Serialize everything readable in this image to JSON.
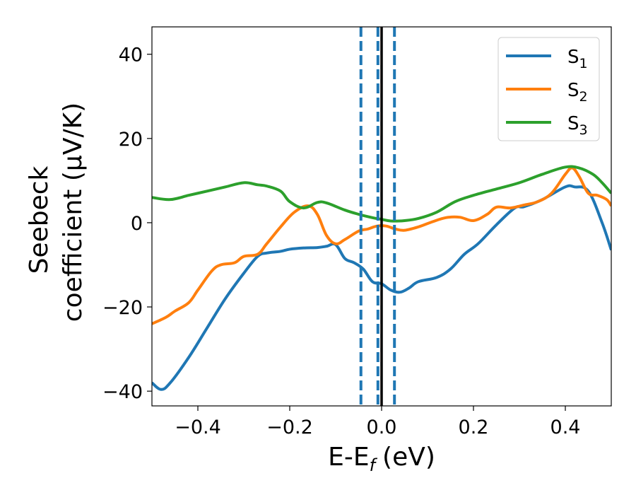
{
  "chart_data": {
    "type": "line",
    "xlabel": "E-E",
    "xlabel_sub": "f",
    "xlabel_unit": "(eV)",
    "ylabel_line1": "Seebeck",
    "ylabel_line2": "coefficient  (μV/K)",
    "xlim": [
      -0.5,
      0.5
    ],
    "ylim": [
      -43.5,
      46.5
    ],
    "x_ticks": [
      -0.4,
      -0.2,
      0.0,
      0.2,
      0.4
    ],
    "x_tick_labels": [
      "−0.4",
      "−0.2",
      "0.0",
      "0.2",
      "0.4"
    ],
    "y_ticks": [
      -40,
      -20,
      0,
      20,
      40
    ],
    "y_tick_labels": [
      "−40",
      "−20",
      "0",
      "20",
      "40"
    ],
    "grid": false,
    "legend_position": "top-right",
    "vlines": [
      {
        "x": -0.045,
        "style": "dashed",
        "color": "#1f77b4"
      },
      {
        "x": -0.008,
        "style": "dashed",
        "color": "#1f77b4"
      },
      {
        "x": 0.028,
        "style": "dashed",
        "color": "#1f77b4"
      },
      {
        "x": 0.0,
        "style": "solid",
        "color": "#000000"
      }
    ],
    "series": [
      {
        "name": "S",
        "sub": "1",
        "color": "#1f77b4",
        "points": [
          [
            -0.5,
            -38
          ],
          [
            -0.48,
            -39.6
          ],
          [
            -0.46,
            -38
          ],
          [
            -0.42,
            -32
          ],
          [
            -0.38,
            -25
          ],
          [
            -0.34,
            -18
          ],
          [
            -0.3,
            -12
          ],
          [
            -0.27,
            -8
          ],
          [
            -0.25,
            -7.2
          ],
          [
            -0.22,
            -6.8
          ],
          [
            -0.2,
            -6.3
          ],
          [
            -0.17,
            -6
          ],
          [
            -0.14,
            -5.9
          ],
          [
            -0.12,
            -5.6
          ],
          [
            -0.1,
            -5.2
          ],
          [
            -0.08,
            -8.5
          ],
          [
            -0.06,
            -9.5
          ],
          [
            -0.04,
            -11
          ],
          [
            -0.02,
            -14
          ],
          [
            0.0,
            -14.5
          ],
          [
            0.02,
            -16
          ],
          [
            0.04,
            -16.5
          ],
          [
            0.06,
            -15.5
          ],
          [
            0.08,
            -14
          ],
          [
            0.12,
            -13
          ],
          [
            0.15,
            -11
          ],
          [
            0.18,
            -7.5
          ],
          [
            0.21,
            -5
          ],
          [
            0.25,
            -0.5
          ],
          [
            0.29,
            3.5
          ],
          [
            0.31,
            3.8
          ],
          [
            0.35,
            5.5
          ],
          [
            0.4,
            8.5
          ],
          [
            0.42,
            8.5
          ],
          [
            0.45,
            7.5
          ],
          [
            0.48,
            0
          ],
          [
            0.5,
            -6.5
          ]
        ]
      },
      {
        "name": "S",
        "sub": "2",
        "color": "#ff7f0e",
        "points": [
          [
            -0.5,
            -24
          ],
          [
            -0.47,
            -22.5
          ],
          [
            -0.45,
            -21
          ],
          [
            -0.42,
            -19
          ],
          [
            -0.4,
            -16
          ],
          [
            -0.37,
            -11.5
          ],
          [
            -0.35,
            -10
          ],
          [
            -0.32,
            -9.5
          ],
          [
            -0.3,
            -8
          ],
          [
            -0.27,
            -7.5
          ],
          [
            -0.25,
            -5
          ],
          [
            -0.22,
            -1
          ],
          [
            -0.19,
            2.5
          ],
          [
            -0.16,
            4
          ],
          [
            -0.14,
            2
          ],
          [
            -0.12,
            -3
          ],
          [
            -0.1,
            -5
          ],
          [
            -0.08,
            -4
          ],
          [
            -0.05,
            -2
          ],
          [
            -0.03,
            -1.5
          ],
          [
            -0.01,
            -0.8
          ],
          [
            0.01,
            -0.8
          ],
          [
            0.03,
            -1.5
          ],
          [
            0.05,
            -1.8
          ],
          [
            0.08,
            -1
          ],
          [
            0.11,
            0.2
          ],
          [
            0.14,
            1.2
          ],
          [
            0.17,
            1.3
          ],
          [
            0.2,
            0.5
          ],
          [
            0.23,
            2
          ],
          [
            0.25,
            3.7
          ],
          [
            0.28,
            3.5
          ],
          [
            0.31,
            4.2
          ],
          [
            0.34,
            5
          ],
          [
            0.37,
            7
          ],
          [
            0.4,
            11.5
          ],
          [
            0.415,
            13
          ],
          [
            0.43,
            11
          ],
          [
            0.45,
            7
          ],
          [
            0.47,
            6.5
          ],
          [
            0.49,
            5.5
          ],
          [
            0.5,
            4
          ]
        ]
      },
      {
        "name": "S",
        "sub": "3",
        "color": "#2ca02c",
        "points": [
          [
            -0.5,
            6
          ],
          [
            -0.46,
            5.5
          ],
          [
            -0.42,
            6.5
          ],
          [
            -0.38,
            7.5
          ],
          [
            -0.34,
            8.5
          ],
          [
            -0.3,
            9.5
          ],
          [
            -0.27,
            9
          ],
          [
            -0.25,
            8.7
          ],
          [
            -0.22,
            7.5
          ],
          [
            -0.2,
            5
          ],
          [
            -0.17,
            3.5
          ],
          [
            -0.14,
            4.8
          ],
          [
            -0.12,
            4.7
          ],
          [
            -0.08,
            3
          ],
          [
            -0.05,
            2
          ],
          [
            -0.02,
            1.2
          ],
          [
            0.0,
            0.8
          ],
          [
            0.02,
            0.4
          ],
          [
            0.05,
            0.5
          ],
          [
            0.08,
            1
          ],
          [
            0.12,
            2.5
          ],
          [
            0.16,
            5
          ],
          [
            0.2,
            6.5
          ],
          [
            0.25,
            8
          ],
          [
            0.3,
            9.5
          ],
          [
            0.35,
            11.5
          ],
          [
            0.4,
            13.2
          ],
          [
            0.43,
            13
          ],
          [
            0.46,
            11.5
          ],
          [
            0.48,
            9.5
          ],
          [
            0.5,
            7
          ]
        ]
      }
    ]
  }
}
